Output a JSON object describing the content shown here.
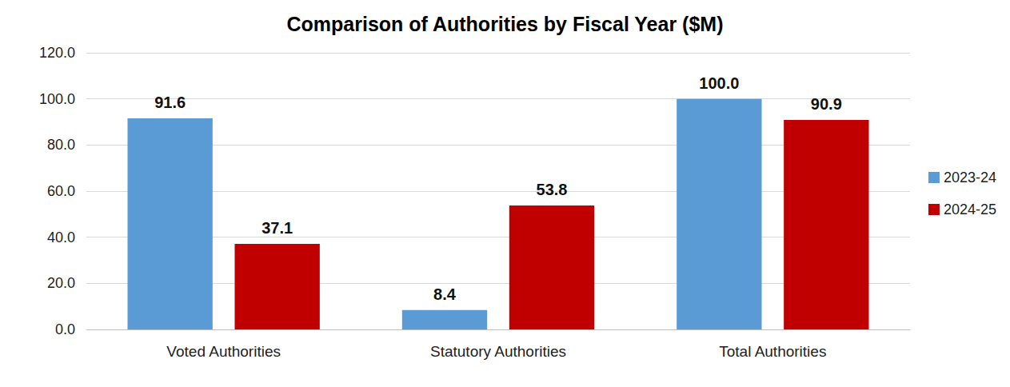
{
  "chart_data": {
    "type": "bar",
    "title": "Comparison of Authorities by Fiscal Year ($M)",
    "categories": [
      "Voted Authorities",
      "Statutory Authorities",
      "Total Authorities"
    ],
    "series": [
      {
        "name": "2023-24",
        "color": "#5b9bd5",
        "values": [
          91.6,
          8.4,
          100.0
        ],
        "value_labels": [
          "91.6",
          "8.4",
          "100.0"
        ]
      },
      {
        "name": "2024-25",
        "color": "#c00000",
        "values": [
          37.1,
          53.8,
          90.9
        ],
        "value_labels": [
          "37.1",
          "53.8",
          "90.9"
        ]
      }
    ],
    "ylim": [
      0,
      120
    ],
    "yticks": [
      {
        "value": 0,
        "label": "0.0"
      },
      {
        "value": 20,
        "label": "20.0"
      },
      {
        "value": 40,
        "label": "40.0"
      },
      {
        "value": 60,
        "label": "60.0"
      },
      {
        "value": 80,
        "label": "80.0"
      },
      {
        "value": 100,
        "label": "100.0"
      },
      {
        "value": 120,
        "label": "120.0"
      }
    ],
    "grid": true,
    "legend": "right",
    "data_labels": true
  }
}
